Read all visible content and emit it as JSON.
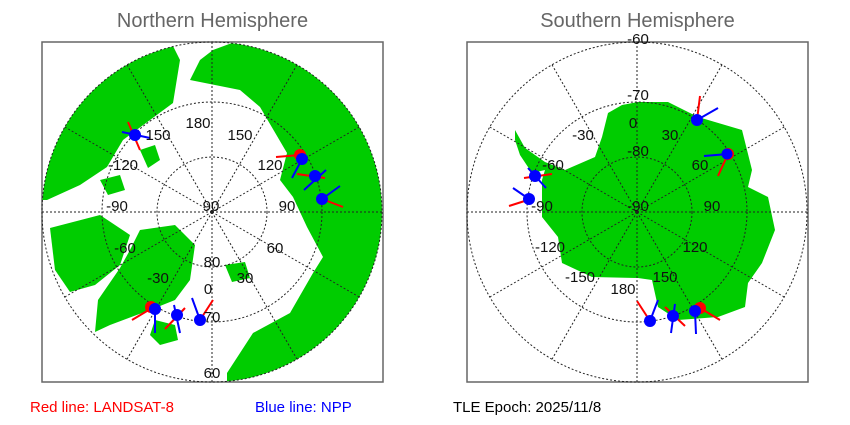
{
  "north": {
    "title": "Northern Hemisphere",
    "labels": {
      "l180": "180",
      "l150e": "150",
      "l150w": "150",
      "lm120": "-120",
      "l120": "120",
      "lm90": "-90",
      "l90c": "90",
      "l90": "90",
      "lm60": "-60",
      "l60": "60",
      "l80": "80",
      "lm30": "-30",
      "l30": "30",
      "l0": "0",
      "l70": "70",
      "l60b": "60"
    }
  },
  "south": {
    "title": "Southern Hemisphere",
    "labels": {
      "lm60t": "-60",
      "lm70": "-70",
      "l0": "0",
      "lm30": "-30",
      "l30": "30",
      "lm80": "-80",
      "lm60": "-60",
      "l60": "60",
      "lm90l": "-90",
      "lm90c": "-90",
      "l90": "90",
      "lm120": "-120",
      "l120": "120",
      "lm150": "-150",
      "l150": "150",
      "l180": "180"
    }
  },
  "legend": {
    "red": "Red line: LANDSAT-8",
    "blue": "Blue line: NPP",
    "epoch": "TLE Epoch: 2025/11/8"
  },
  "colors": {
    "land": "#00cc00",
    "red": "#ff0000",
    "blue": "#0000ff",
    "title": "#666666"
  }
}
